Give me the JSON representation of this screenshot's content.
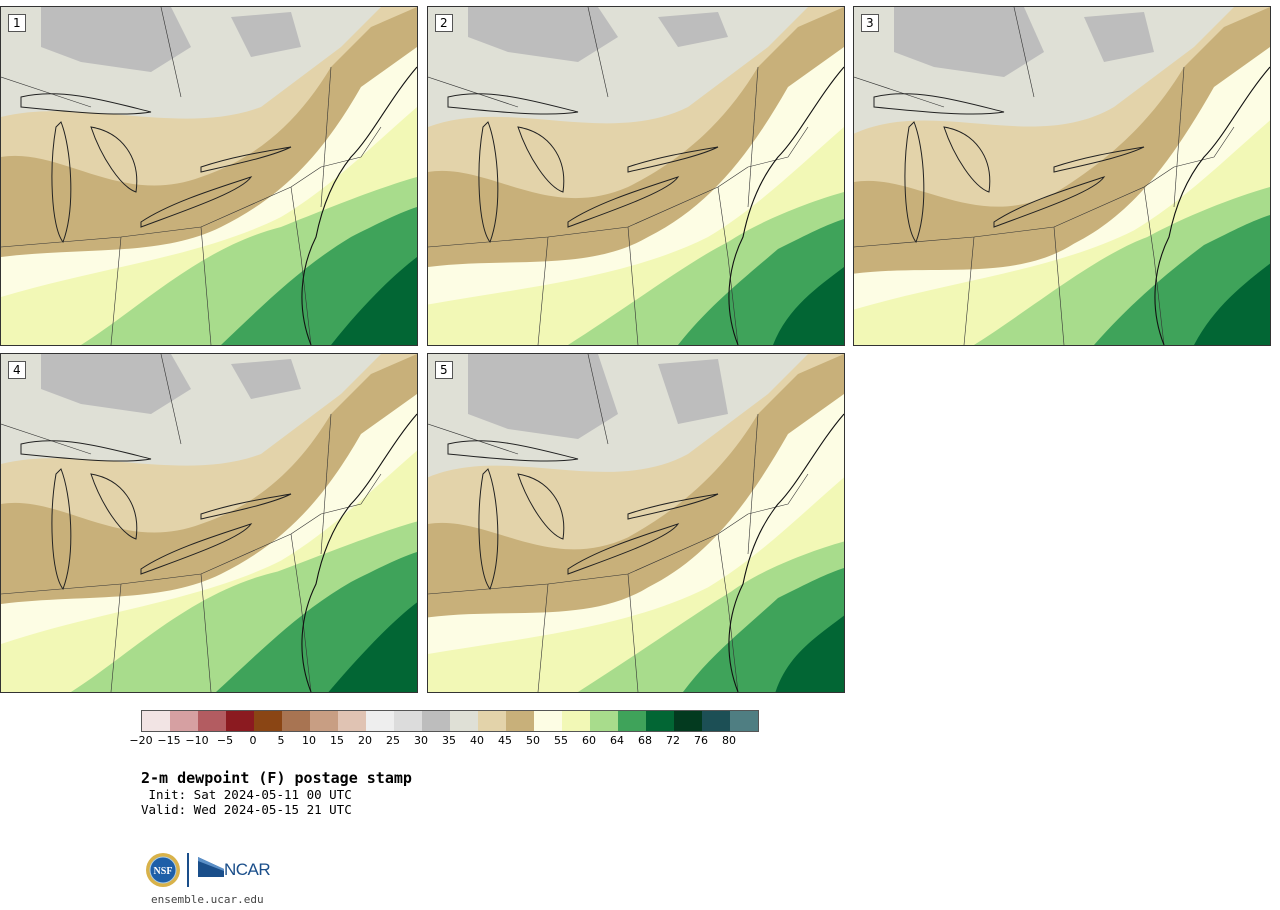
{
  "panels": [
    {
      "label": "1"
    },
    {
      "label": "2"
    },
    {
      "label": "3"
    },
    {
      "label": "4"
    },
    {
      "label": "5"
    }
  ],
  "colorbar": {
    "colors": [
      "#f2e4e4",
      "#d6a0a2",
      "#b35c61",
      "#8b1a20",
      "#8a4514",
      "#a87452",
      "#c89e83",
      "#e0c3b3",
      "#eeeeee",
      "#dcdcdc",
      "#bdbdbd",
      "#dfe0d6",
      "#e3d3aa",
      "#c8b07a",
      "#fdfde4",
      "#f2f8b6",
      "#a8dc8c",
      "#3fa35a",
      "#026634",
      "#033a1f",
      "#1c4f55",
      "#4f7e82"
    ],
    "labels": [
      "−20",
      "−15",
      "−10",
      "−5",
      "0",
      "5",
      "10",
      "15",
      "20",
      "25",
      "30",
      "35",
      "40",
      "45",
      "50",
      "55",
      "60",
      "64",
      "68",
      "72",
      "76",
      "80"
    ]
  },
  "title": "2-m dewpoint (F) postage stamp",
  "init": " Init: Sat 2024-05-11 00 UTC",
  "valid": "Valid: Wed 2024-05-15 21 UTC",
  "logo_text": "NCAR",
  "nsf_text": "NSF",
  "site": "ensemble.ucar.edu",
  "field_colors": {
    "gray": "#bdbdbd",
    "light_gray": "#dfe0d6",
    "tan_light": "#e3d3aa",
    "tan": "#c8b07a",
    "cream": "#fdfde4",
    "yellow": "#f2f8b6",
    "green_light": "#a8dc8c",
    "green": "#3fa35a",
    "green_dark": "#026634"
  }
}
